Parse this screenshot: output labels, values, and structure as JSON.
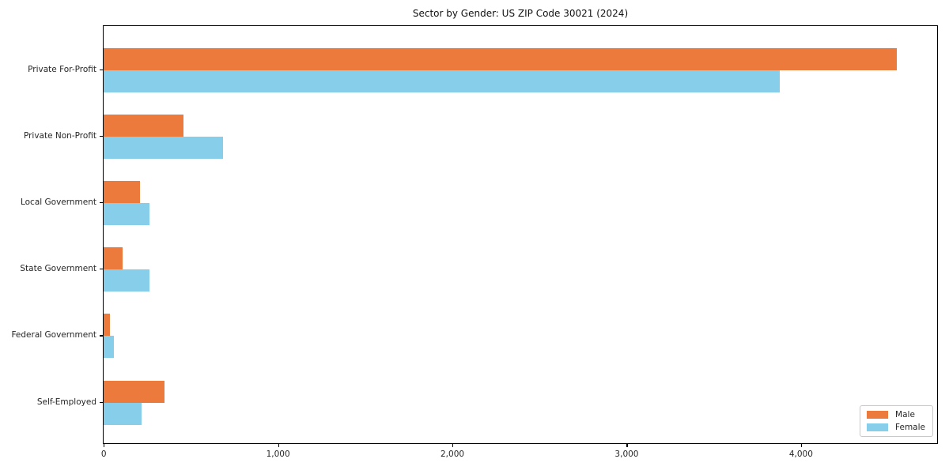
{
  "title": "Sector by Gender: US ZIP Code 30021 (2024)",
  "chart_data": {
    "type": "bar",
    "orientation": "horizontal",
    "title": "Sector by Gender: US ZIP Code 30021 (2024)",
    "categories": [
      "Private For-Profit",
      "Private Non-Profit",
      "Local Government",
      "State Government",
      "Federal Government",
      "Self-Employed"
    ],
    "series": [
      {
        "name": "Male",
        "color": "#EC7A3C",
        "values": [
          4550,
          460,
          210,
          110,
          38,
          350
        ]
      },
      {
        "name": "Female",
        "color": "#87CEEB",
        "values": [
          3880,
          685,
          265,
          265,
          58,
          220
        ]
      }
    ],
    "xlabel": "",
    "ylabel": "",
    "xlim": [
      0,
      4780
    ],
    "xticks": [
      0,
      1000,
      2000,
      3000,
      4000
    ],
    "xtick_labels": [
      "0",
      "1,000",
      "2,000",
      "3,000",
      "4,000"
    ],
    "grid": false,
    "legend": {
      "position": "lower right",
      "entries": [
        "Male",
        "Female"
      ]
    }
  }
}
